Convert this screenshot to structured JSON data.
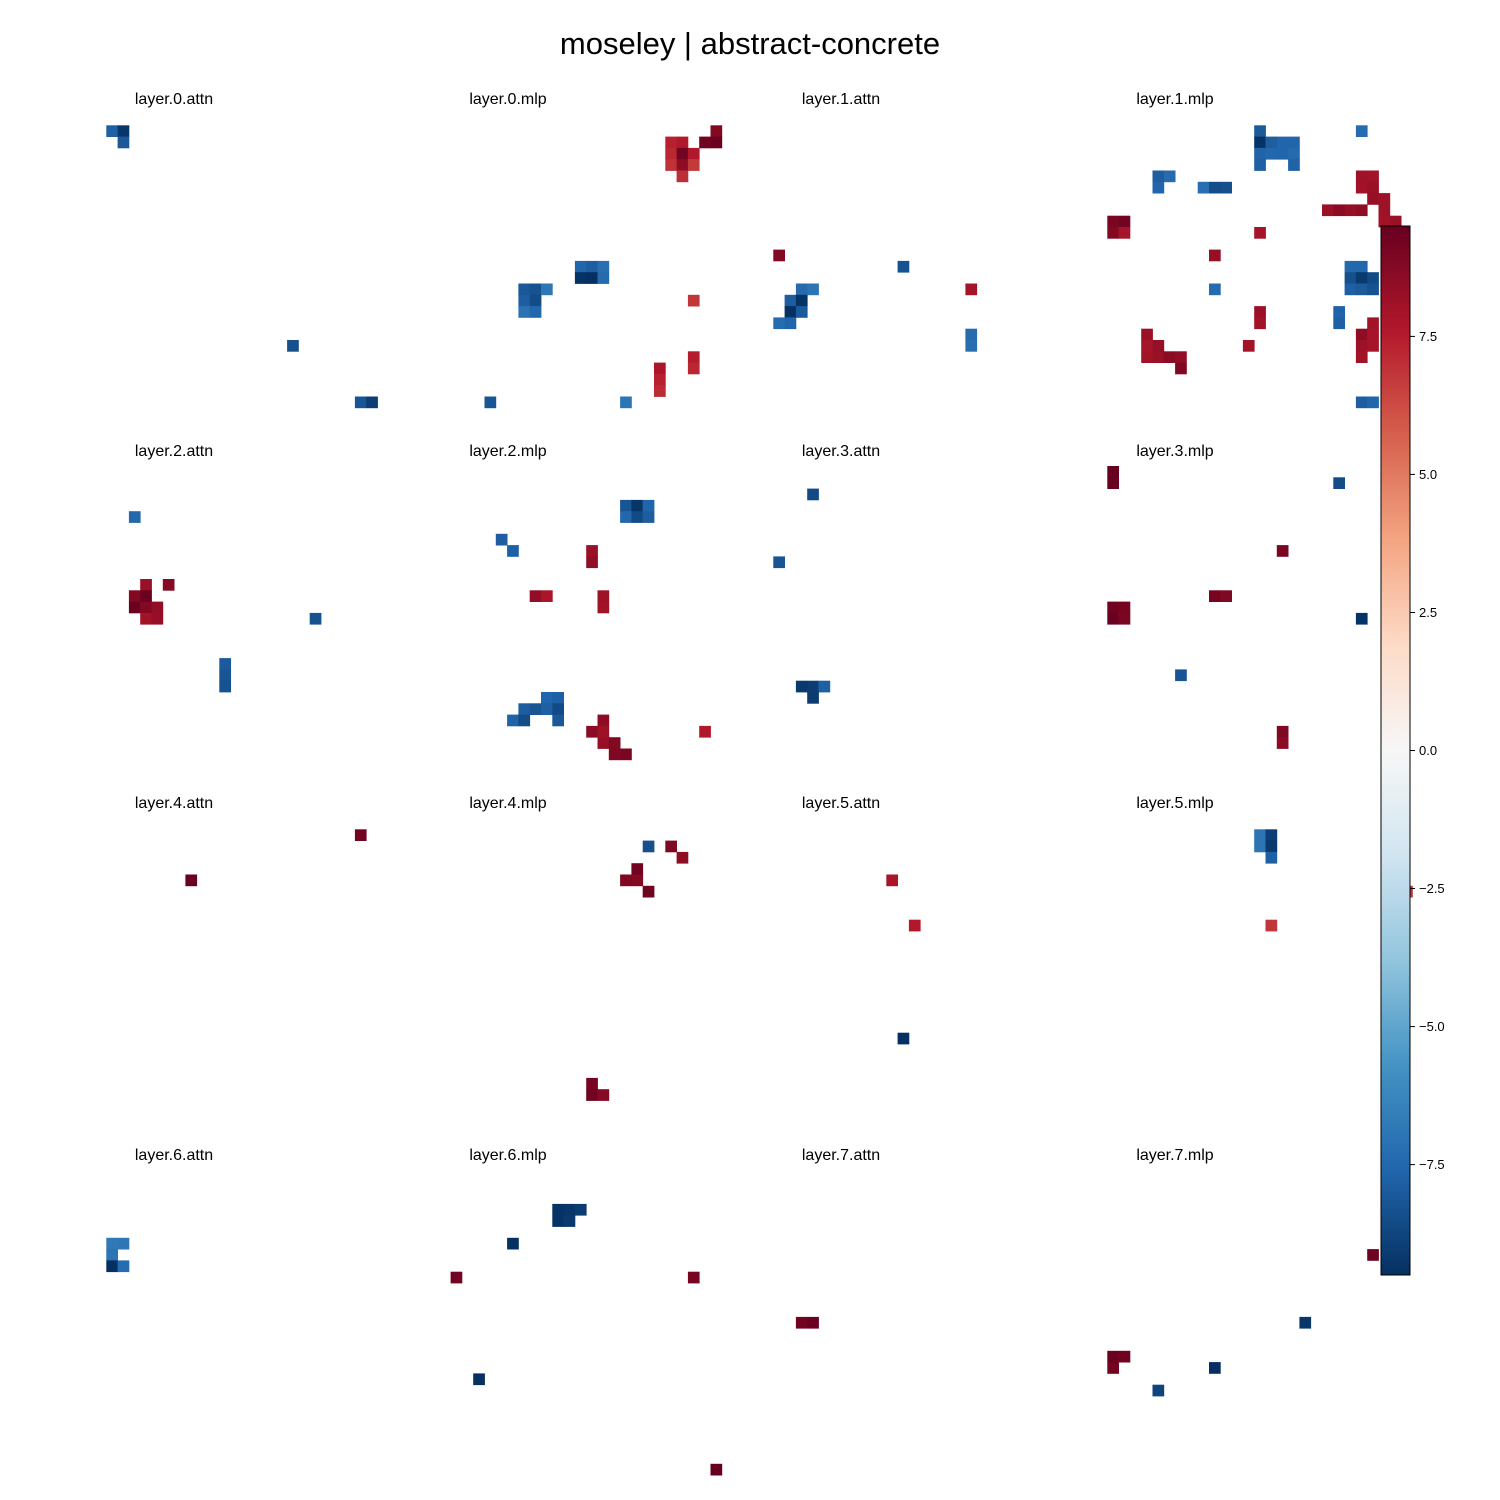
{
  "chart_data": {
    "type": "heatmap",
    "title": "moseley | abstract-concrete",
    "grid": {
      "rows": 30,
      "cols": 25
    },
    "colorbar": {
      "min": -9.5,
      "max": 9.5,
      "ticks": [
        -7.5,
        -5.0,
        -2.5,
        0.0,
        2.5,
        5.0,
        7.5
      ],
      "tick_labels": [
        "−7.5",
        "−5.0",
        "−2.5",
        "0.0",
        "2.5",
        "5.0",
        "7.5"
      ],
      "colormap": "RdBu_r"
    },
    "panels": [
      {
        "title": "layer.0.attn",
        "cells": [
          [
            1,
            1,
            -7.8
          ],
          [
            1,
            2,
            -9.3
          ],
          [
            2,
            2,
            -8.1
          ],
          [
            20,
            17,
            -8.4
          ],
          [
            25,
            23,
            -8.2
          ],
          [
            25,
            24,
            -9.0
          ]
        ]
      },
      {
        "title": "layer.0.mlp",
        "cells": [
          [
            1,
            25,
            8.8
          ],
          [
            2,
            24,
            9.3
          ],
          [
            2,
            25,
            9.4
          ],
          [
            2,
            21,
            7.4
          ],
          [
            2,
            22,
            7.6
          ],
          [
            3,
            21,
            7.2
          ],
          [
            3,
            22,
            9.2
          ],
          [
            3,
            23,
            7.6
          ],
          [
            4,
            21,
            6.9
          ],
          [
            4,
            22,
            8.5
          ],
          [
            4,
            23,
            6.7
          ],
          [
            5,
            22,
            7.0
          ],
          [
            13,
            13,
            -7.6
          ],
          [
            13,
            14,
            -7.9
          ],
          [
            13,
            15,
            -7.2
          ],
          [
            14,
            13,
            -9.4
          ],
          [
            14,
            14,
            -9.6
          ],
          [
            14,
            15,
            -7.4
          ],
          [
            15,
            8,
            -8.1
          ],
          [
            15,
            9,
            -8.3
          ],
          [
            15,
            10,
            -6.9
          ],
          [
            16,
            8,
            -7.9
          ],
          [
            16,
            9,
            -8.5
          ],
          [
            17,
            8,
            -7.1
          ],
          [
            17,
            9,
            -7.5
          ],
          [
            16,
            23,
            6.8
          ],
          [
            21,
            23,
            7.5
          ],
          [
            22,
            23,
            7.2
          ],
          [
            22,
            20,
            7.8
          ],
          [
            23,
            20,
            7.4
          ],
          [
            24,
            20,
            7.1
          ],
          [
            25,
            5,
            -8.2
          ],
          [
            25,
            17,
            -7.0
          ]
        ]
      },
      {
        "title": "layer.1.attn",
        "cells": [
          [
            12,
            1,
            8.8
          ],
          [
            13,
            12,
            -8.3
          ],
          [
            15,
            3,
            -7.4
          ],
          [
            15,
            4,
            -7.0
          ],
          [
            16,
            2,
            -7.9
          ],
          [
            16,
            3,
            -9.4
          ],
          [
            17,
            2,
            -9.6
          ],
          [
            17,
            3,
            -8.0
          ],
          [
            18,
            1,
            -7.3
          ],
          [
            18,
            2,
            -7.6
          ],
          [
            15,
            18,
            7.9
          ],
          [
            19,
            18,
            -7.4
          ],
          [
            20,
            18,
            -7.2
          ]
        ]
      },
      {
        "title": "layer.1.mlp",
        "cells": [
          [
            1,
            14,
            -8.0
          ],
          [
            2,
            14,
            -9.4
          ],
          [
            2,
            15,
            -7.9
          ],
          [
            2,
            16,
            -7.6
          ],
          [
            2,
            17,
            -7.6
          ],
          [
            3,
            14,
            -7.7
          ],
          [
            3,
            15,
            -7.5
          ],
          [
            3,
            16,
            -7.6
          ],
          [
            3,
            17,
            -7.4
          ],
          [
            4,
            14,
            -7.8
          ],
          [
            4,
            17,
            -7.7
          ],
          [
            1,
            23,
            -7.3
          ],
          [
            5,
            5,
            -7.9
          ],
          [
            5,
            6,
            -7.4
          ],
          [
            6,
            5,
            -7.6
          ],
          [
            6,
            9,
            -7.2
          ],
          [
            6,
            10,
            -8.5
          ],
          [
            6,
            11,
            -8.4
          ],
          [
            5,
            23,
            8.1
          ],
          [
            5,
            24,
            8.0
          ],
          [
            6,
            23,
            8.0
          ],
          [
            6,
            24,
            8.2
          ],
          [
            7,
            24,
            8.3
          ],
          [
            7,
            25,
            8.1
          ],
          [
            8,
            20,
            8.2
          ],
          [
            8,
            21,
            8.6
          ],
          [
            8,
            22,
            8.3
          ],
          [
            8,
            23,
            8.5
          ],
          [
            8,
            25,
            8.1
          ],
          [
            9,
            25,
            8.0
          ],
          [
            9,
            26,
            8.2
          ],
          [
            9,
            1,
            9.0
          ],
          [
            9,
            2,
            9.2
          ],
          [
            10,
            1,
            8.8
          ],
          [
            10,
            2,
            7.9
          ],
          [
            10,
            14,
            7.9
          ],
          [
            12,
            10,
            8.3
          ],
          [
            13,
            22,
            -7.5
          ],
          [
            13,
            23,
            -7.5
          ],
          [
            14,
            22,
            -8.4
          ],
          [
            14,
            23,
            -9.2
          ],
          [
            14,
            24,
            -8.6
          ],
          [
            15,
            22,
            -7.8
          ],
          [
            15,
            23,
            -8.0
          ],
          [
            15,
            24,
            -8.3
          ],
          [
            15,
            10,
            -7.4
          ],
          [
            17,
            21,
            -7.7
          ],
          [
            18,
            21,
            -7.8
          ],
          [
            17,
            14,
            8.2
          ],
          [
            18,
            14,
            8.0
          ],
          [
            18,
            24,
            8.0
          ],
          [
            19,
            23,
            8.5
          ],
          [
            19,
            24,
            7.9
          ],
          [
            19,
            4,
            8.2
          ],
          [
            20,
            4,
            7.9
          ],
          [
            20,
            5,
            8.3
          ],
          [
            20,
            13,
            8.0
          ],
          [
            20,
            23,
            8.1
          ],
          [
            20,
            24,
            7.9
          ],
          [
            21,
            4,
            8.0
          ],
          [
            21,
            5,
            8.2
          ],
          [
            21,
            6,
            8.6
          ],
          [
            21,
            7,
            8.4
          ],
          [
            21,
            23,
            8.0
          ],
          [
            22,
            7,
            8.9
          ],
          [
            25,
            23,
            -7.9
          ],
          [
            25,
            24,
            -7.6
          ]
        ]
      },
      {
        "title": "layer.2.attn",
        "cells": [
          [
            4,
            3,
            -7.5
          ],
          [
            10,
            4,
            8.2
          ],
          [
            10,
            6,
            8.7
          ],
          [
            11,
            3,
            8.8
          ],
          [
            11,
            4,
            9.4
          ],
          [
            12,
            3,
            9.4
          ],
          [
            12,
            4,
            8.8
          ],
          [
            12,
            5,
            8.4
          ],
          [
            13,
            4,
            8.0
          ],
          [
            13,
            5,
            8.3
          ],
          [
            13,
            19,
            -8.3
          ],
          [
            17,
            11,
            -8.0
          ],
          [
            18,
            11,
            -8.2
          ],
          [
            19,
            11,
            -8.3
          ]
        ]
      },
      {
        "title": "layer.2.mlp",
        "cells": [
          [
            3,
            17,
            -8.2
          ],
          [
            3,
            18,
            -9.3
          ],
          [
            3,
            19,
            -7.6
          ],
          [
            4,
            17,
            -7.5
          ],
          [
            4,
            18,
            -8.6
          ],
          [
            4,
            19,
            -7.9
          ],
          [
            6,
            6,
            -7.9
          ],
          [
            7,
            7,
            -7.8
          ],
          [
            7,
            14,
            8.2
          ],
          [
            8,
            14,
            8.4
          ],
          [
            11,
            9,
            8.4
          ],
          [
            11,
            10,
            7.8
          ],
          [
            11,
            15,
            8.1
          ],
          [
            12,
            15,
            8.0
          ],
          [
            20,
            10,
            -7.6
          ],
          [
            20,
            11,
            -7.8
          ],
          [
            21,
            8,
            -7.9
          ],
          [
            21,
            9,
            -8.2
          ],
          [
            21,
            10,
            -7.8
          ],
          [
            21,
            11,
            -8.6
          ],
          [
            22,
            7,
            -7.7
          ],
          [
            22,
            8,
            -8.5
          ],
          [
            22,
            11,
            -8.1
          ],
          [
            22,
            15,
            8.5
          ],
          [
            23,
            14,
            8.6
          ],
          [
            23,
            15,
            8.1
          ],
          [
            23,
            24,
            7.6
          ],
          [
            24,
            15,
            8.3
          ],
          [
            24,
            16,
            8.8
          ],
          [
            25,
            16,
            8.9
          ],
          [
            25,
            17,
            9.0
          ]
        ]
      },
      {
        "title": "layer.3.attn",
        "cells": [
          [
            2,
            4,
            -8.6
          ],
          [
            8,
            1,
            -8.2
          ],
          [
            19,
            3,
            -9.2
          ],
          [
            19,
            4,
            -9.0
          ],
          [
            19,
            5,
            -7.8
          ],
          [
            20,
            4,
            -9.1
          ]
        ]
      },
      {
        "title": "layer.3.mlp",
        "cells": [
          [
            0,
            1,
            9.5
          ],
          [
            1,
            1,
            9.4
          ],
          [
            1,
            21,
            -8.5
          ],
          [
            7,
            16,
            9.0
          ],
          [
            11,
            10,
            9.1
          ],
          [
            11,
            11,
            8.9
          ],
          [
            12,
            1,
            9.3
          ],
          [
            12,
            2,
            9.1
          ],
          [
            13,
            1,
            9.4
          ],
          [
            13,
            2,
            9.0
          ],
          [
            13,
            23,
            -9.4
          ],
          [
            16,
            26,
            -8.4
          ],
          [
            18,
            7,
            -8.2
          ],
          [
            23,
            16,
            8.9
          ],
          [
            24,
            16,
            8.6
          ]
        ]
      },
      {
        "title": "layer.4.attn",
        "cells": [
          [
            1,
            23,
            9.2
          ],
          [
            5,
            8,
            9.4
          ]
        ]
      },
      {
        "title": "layer.4.mlp",
        "cells": [
          [
            2,
            19,
            -8.4
          ],
          [
            2,
            21,
            8.9
          ],
          [
            3,
            22,
            8.5
          ],
          [
            4,
            18,
            9.2
          ],
          [
            5,
            17,
            8.9
          ],
          [
            5,
            18,
            8.8
          ],
          [
            6,
            19,
            9.3
          ],
          [
            23,
            14,
            9.1
          ],
          [
            24,
            14,
            9.2
          ],
          [
            24,
            15,
            8.7
          ]
        ]
      },
      {
        "title": "layer.5.attn",
        "cells": [
          [
            5,
            11,
            7.8
          ],
          [
            9,
            13,
            7.6
          ],
          [
            19,
            12,
            -9.5
          ]
        ]
      },
      {
        "title": "layer.5.mlp",
        "cells": [
          [
            1,
            14,
            -7.0
          ],
          [
            1,
            15,
            -9.0
          ],
          [
            2,
            14,
            -7.0
          ],
          [
            2,
            15,
            -9.2
          ],
          [
            3,
            15,
            -7.8
          ],
          [
            6,
            27,
            6.9
          ],
          [
            9,
            15,
            6.8
          ]
        ]
      },
      {
        "title": "layer.6.attn",
        "cells": [
          [
            6,
            1,
            -6.8
          ],
          [
            6,
            2,
            -6.9
          ],
          [
            7,
            1,
            -7.0
          ],
          [
            8,
            1,
            -9.5
          ],
          [
            8,
            2,
            -7.3
          ]
        ]
      },
      {
        "title": "layer.6.mlp",
        "cells": [
          [
            3,
            11,
            -9.4
          ],
          [
            3,
            12,
            -9.3
          ],
          [
            3,
            13,
            -9.1
          ],
          [
            4,
            11,
            -9.4
          ],
          [
            4,
            12,
            -9.2
          ],
          [
            6,
            7,
            -9.5
          ],
          [
            9,
            2,
            9.2
          ],
          [
            9,
            23,
            9.1
          ],
          [
            18,
            4,
            -9.5
          ],
          [
            26,
            25,
            9.5
          ]
        ]
      },
      {
        "title": "layer.7.attn",
        "cells": [
          [
            13,
            3,
            9.2
          ],
          [
            13,
            4,
            9.4
          ]
        ]
      },
      {
        "title": "layer.7.mlp",
        "cells": [
          [
            7,
            24,
            9.3
          ],
          [
            13,
            18,
            -9.3
          ],
          [
            16,
            1,
            9.4
          ],
          [
            16,
            2,
            9.3
          ],
          [
            17,
            1,
            9.2
          ],
          [
            17,
            10,
            -9.5
          ],
          [
            19,
            5,
            -8.8
          ]
        ]
      }
    ]
  }
}
